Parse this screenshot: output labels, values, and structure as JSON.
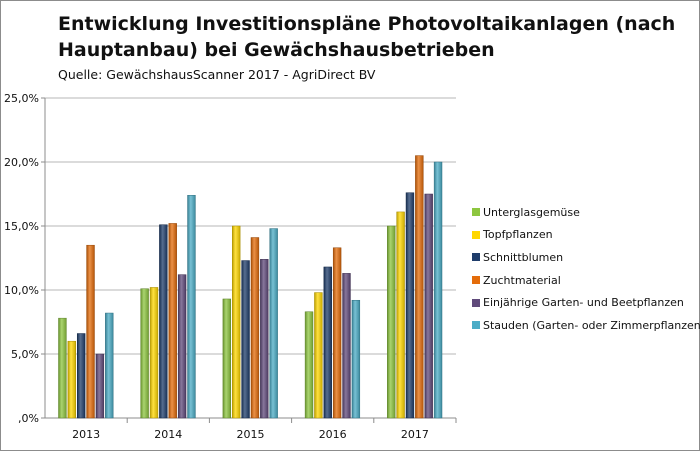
{
  "title": "Entwicklung Investitionspläne Photovoltaikanlagen (nach Hauptanbau) bei Gewächshausbetrieben",
  "subtitle": "Quelle: GewächshausScanner 2017 - AgriDirect BV",
  "chart_data": {
    "type": "bar",
    "title": "Entwicklung Investitionspläne Photovoltaikanlagen (nach Hauptanbau) bei Gewächshausbetrieben",
    "subtitle": "Quelle: GewächshausScanner 2017 - AgriDirect BV",
    "xlabel": "",
    "ylabel": "",
    "categories": [
      "2013",
      "2014",
      "2015",
      "2016",
      "2017"
    ],
    "ylim": [
      0,
      25
    ],
    "yticks": [
      0,
      5,
      10,
      15,
      20,
      25
    ],
    "ytick_labels": [
      ",0%",
      "5,0%",
      "10,0%",
      "15,0%",
      "20,0%",
      "25,0%"
    ],
    "grid": true,
    "legend_position": "right",
    "series": [
      {
        "name": "Unterglasgemüse",
        "color": "#8dc63f",
        "values": [
          7.8,
          10.1,
          9.3,
          8.3,
          15.0
        ]
      },
      {
        "name": "Topfpflanzen",
        "color": "#ffd700",
        "values": [
          6.0,
          10.2,
          15.0,
          9.8,
          16.1
        ]
      },
      {
        "name": "Schnittblumen",
        "color": "#1f3d6b",
        "values": [
          6.6,
          15.1,
          12.3,
          11.8,
          17.6
        ]
      },
      {
        "name": "Zuchtmaterial",
        "color": "#e46c0a",
        "values": [
          13.5,
          15.2,
          14.1,
          13.3,
          20.5
        ]
      },
      {
        "name": "Einjährige Garten- und Beetpflanzen",
        "color": "#604a7b",
        "values": [
          5.0,
          11.2,
          12.4,
          11.3,
          17.5
        ]
      },
      {
        "name": "Stauden (Garten- oder Zimmerpflanzen)",
        "color": "#4bacc6",
        "values": [
          8.2,
          17.4,
          14.8,
          9.2,
          20.0
        ]
      }
    ]
  }
}
